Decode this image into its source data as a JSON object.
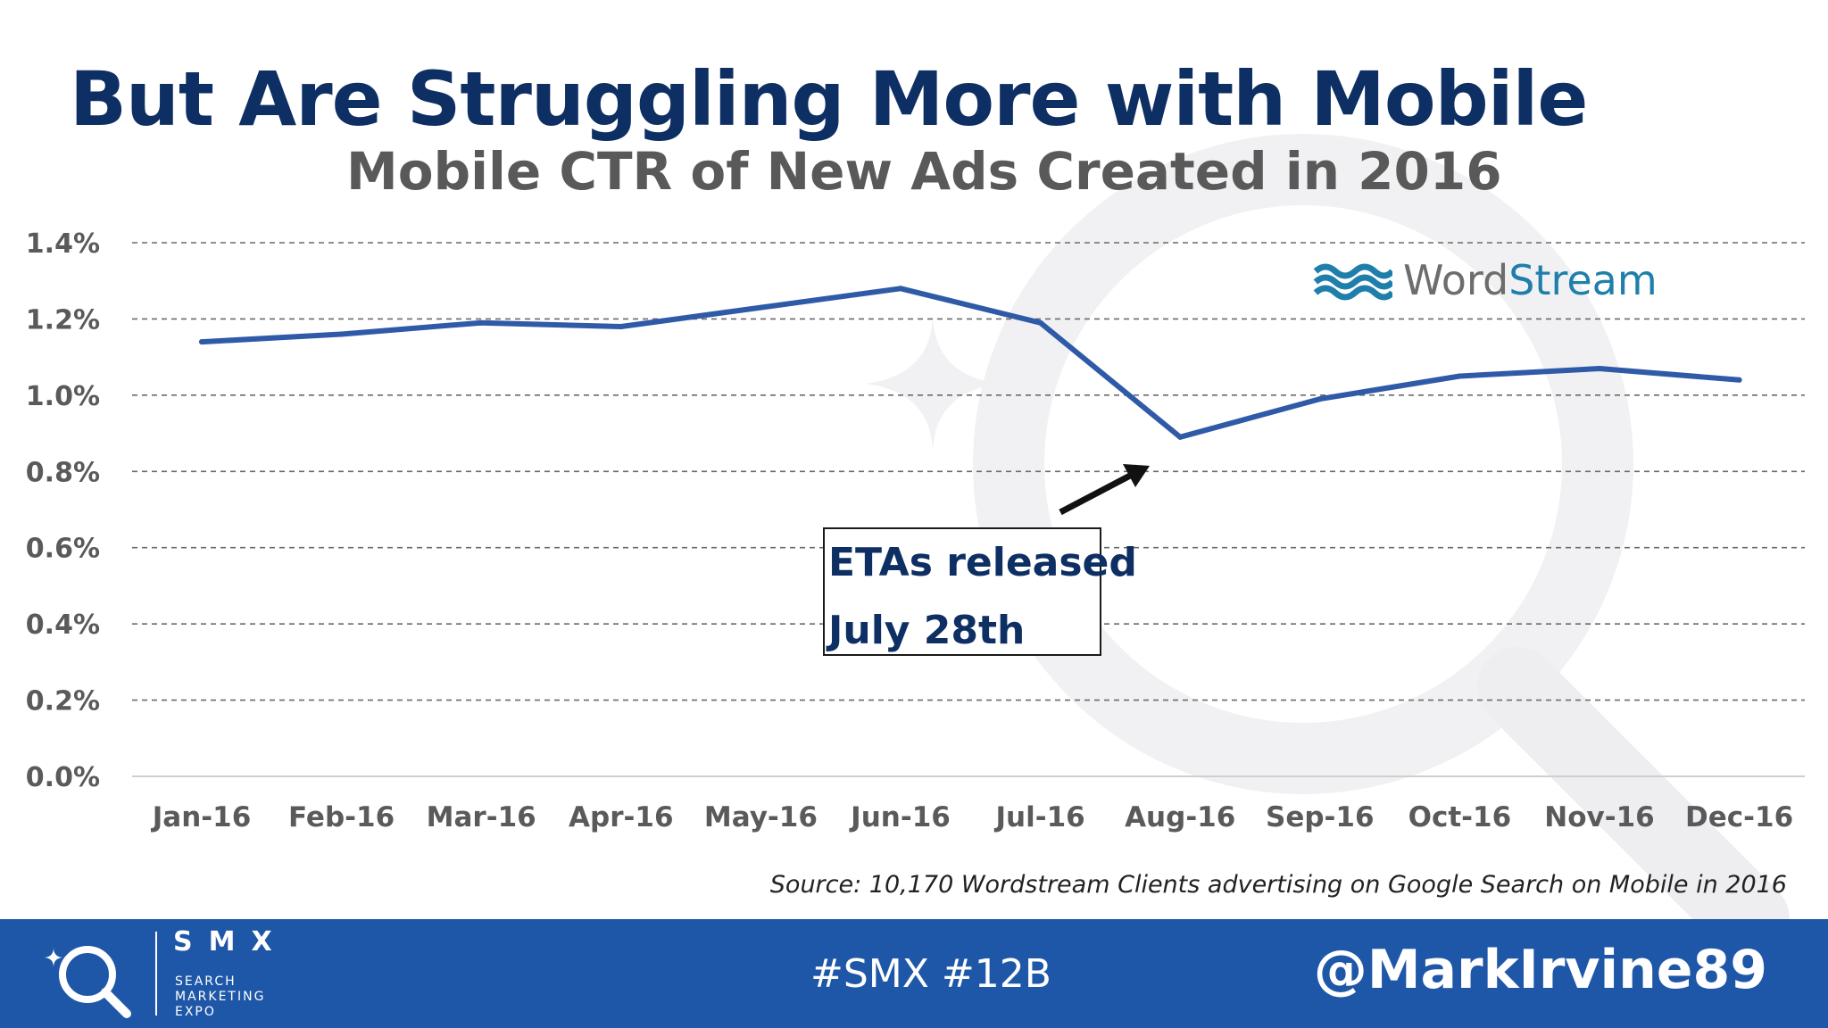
{
  "slide": {
    "headline": "But Are Struggling More with Mobile",
    "source_note": "Source: 10,170 Wordstream Clients advertising on Google Search on Mobile in 2016"
  },
  "chart_data": {
    "type": "line",
    "title": "Mobile CTR of New Ads Created in 2016",
    "xlabel": "",
    "ylabel": "",
    "categories": [
      "Jan-16",
      "Feb-16",
      "Mar-16",
      "Apr-16",
      "May-16",
      "Jun-16",
      "Jul-16",
      "Aug-16",
      "Sep-16",
      "Oct-16",
      "Nov-16",
      "Dec-16"
    ],
    "series": [
      {
        "values": [
          1.14,
          1.16,
          1.19,
          1.18,
          1.23,
          1.28,
          1.19,
          0.89,
          0.99,
          1.05,
          1.07,
          1.04
        ],
        "color": "#2f5aa7"
      }
    ],
    "ylim": [
      0,
      1.4
    ],
    "yticks": [
      0.0,
      0.2,
      0.4,
      0.6,
      0.8,
      1.0,
      1.2,
      1.4
    ],
    "ytick_labels": [
      "0.0%",
      "0.2%",
      "0.4%",
      "0.6%",
      "0.8%",
      "1.0%",
      "1.2%",
      "1.4%"
    ],
    "grid": true,
    "grid_style": "dashed",
    "annotation": {
      "lines": [
        "ETAs released",
        "July 28th"
      ],
      "points_to": "Aug-16"
    }
  },
  "watermark": {
    "word": "Word",
    "stream": "Stream"
  },
  "footer": {
    "brand": "SMX",
    "brand_lines": [
      "SEARCH",
      "MARKETING",
      "EXPO"
    ],
    "hashtags": "#SMX #12B",
    "handle": "@MarkIrvine89",
    "bg_color": "#1f57a8"
  },
  "icons": [
    "smx-magnifier-icon",
    "wordstream-waves-icon",
    "annotation-arrow-icon"
  ]
}
